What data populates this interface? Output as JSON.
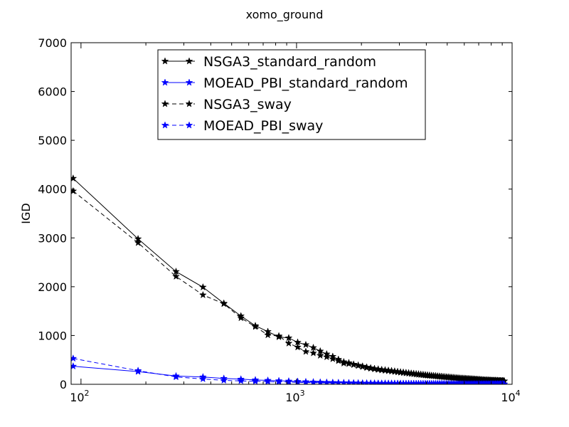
{
  "chart_data": {
    "type": "line",
    "title": "xomo_ground",
    "xlabel": "",
    "ylabel": "IGD",
    "xscale": "log",
    "xlim": [
      90,
      10000
    ],
    "ylim": [
      0,
      7000
    ],
    "x_ticks": [
      {
        "value": 100,
        "base": "10",
        "exp": "2"
      },
      {
        "value": 1000,
        "base": "10",
        "exp": "3"
      },
      {
        "value": 10000,
        "base": "10",
        "exp": "4"
      }
    ],
    "y_ticks": [
      "0",
      "1000",
      "2000",
      "3000",
      "4000",
      "5000",
      "6000",
      "7000"
    ],
    "legend_position": "top-center",
    "grid": false,
    "series": [
      {
        "name": "NSGA3_standard_random",
        "color": "#000000",
        "dash": "solid",
        "x": [
          92,
          184,
          276,
          368,
          460,
          552,
          644,
          736,
          828,
          920,
          1012,
          1104,
          1196,
          1288,
          1380,
          1472,
          1564,
          1656,
          1748,
          1840,
          1932,
          2024,
          2116,
          2208,
          2300,
          2392,
          2484,
          2576,
          2668,
          2760,
          2852,
          2944,
          3036,
          3128,
          3220,
          3312,
          3404,
          3496,
          3588,
          3680,
          3772,
          3864,
          3956,
          4048,
          4140,
          4232,
          4324,
          4416,
          4508,
          4600,
          4692,
          4784,
          4876,
          4968,
          5060,
          5152,
          5244,
          5336,
          5428,
          5520,
          5612,
          5704,
          5796,
          5888,
          5980,
          6072,
          6164,
          6256,
          6348,
          6440,
          6532,
          6624,
          6716,
          6808,
          6900,
          6992,
          7084,
          7176,
          7268,
          7360,
          7452,
          7544,
          7636,
          7728,
          7820,
          7912,
          8004,
          8096,
          8188,
          8280,
          8372,
          8464,
          8556,
          8648,
          8740,
          8832,
          8924,
          9016,
          9108,
          9200
        ],
        "y": [
          4220,
          2980,
          2310,
          1990,
          1660,
          1400,
          1200,
          1080,
          970,
          950,
          860,
          810,
          750,
          680,
          620,
          570,
          510,
          460,
          440,
          410,
          390,
          370,
          350,
          335,
          320,
          310,
          300,
          292,
          284,
          276,
          268,
          260,
          252,
          245,
          238,
          232,
          226,
          220,
          214,
          209,
          204,
          199,
          194,
          189,
          184,
          180,
          176,
          172,
          168,
          164,
          160,
          156,
          153,
          150,
          147,
          144,
          141,
          138,
          135,
          132,
          129,
          126,
          124,
          122,
          120,
          118,
          116,
          114,
          112,
          110,
          108,
          106,
          104,
          102,
          100,
          98,
          96,
          94,
          92,
          90,
          88,
          86,
          85,
          84,
          83,
          82,
          81,
          80,
          79,
          78,
          77,
          76,
          75,
          74,
          73,
          72,
          71,
          70,
          69,
          68
        ]
      },
      {
        "name": "MOEAD_PBI_standard_random",
        "color": "#0000ff",
        "dash": "solid",
        "x": [
          92,
          184,
          276,
          368,
          460,
          552,
          644,
          736,
          828,
          920,
          1012,
          1104,
          1196,
          1288,
          1380,
          1472,
          1564,
          1656,
          1748,
          1840,
          1932,
          2024,
          2116,
          2208,
          2300,
          2392,
          2484,
          2576,
          2668,
          2760,
          2852,
          2944,
          3036,
          3128,
          3220,
          3312,
          3404,
          3496,
          3588,
          3680,
          3772,
          3864,
          3956,
          4048,
          4140,
          4232,
          4324,
          4416,
          4508,
          4600,
          4692,
          4784,
          4876,
          4968,
          5060,
          5152,
          5244,
          5336,
          5428,
          5520,
          5612,
          5704,
          5796,
          5888,
          5980,
          6072,
          6164,
          6256,
          6348,
          6440,
          6532,
          6624,
          6716,
          6808,
          6900,
          6992,
          7084,
          7176,
          7268,
          7360,
          7452,
          7544,
          7636,
          7728,
          7820,
          7912,
          8004,
          8096,
          8188,
          8280,
          8372,
          8464,
          8556,
          8648,
          8740,
          8832,
          8924,
          9016,
          9108,
          9200
        ],
        "y": [
          370,
          260,
          170,
          150,
          120,
          105,
          90,
          80,
          72,
          65,
          58,
          52,
          47,
          43,
          40,
          37,
          34,
          32,
          30,
          28,
          26,
          25,
          24,
          23,
          22,
          21,
          20,
          20,
          19,
          19,
          18,
          18,
          17,
          17,
          16,
          16,
          15,
          15,
          15,
          14,
          14,
          14,
          13,
          13,
          13,
          12,
          12,
          12,
          12,
          11,
          11,
          11,
          11,
          10,
          10,
          10,
          10,
          10,
          9,
          9,
          9,
          9,
          9,
          9,
          8,
          8,
          8,
          8,
          8,
          8,
          8,
          7,
          7,
          7,
          7,
          7,
          7,
          7,
          7,
          6,
          6,
          6,
          6,
          6,
          6,
          6,
          6,
          6,
          5,
          5,
          5,
          5,
          5,
          5,
          5,
          5,
          5,
          5,
          5,
          5
        ]
      },
      {
        "name": "NSGA3_sway",
        "color": "#000000",
        "dash": "dashed",
        "x": [
          92,
          184,
          276,
          368,
          460,
          552,
          644,
          736,
          828,
          920,
          1012,
          1104,
          1196,
          1288,
          1380,
          1472,
          1564,
          1656,
          1748,
          1840,
          1932,
          2024,
          2116,
          2208,
          2300,
          2392,
          2484,
          2576,
          2668,
          2760,
          2852,
          2944,
          3036,
          3128,
          3220,
          3312,
          3404,
          3496,
          3588,
          3680,
          3772,
          3864,
          3956,
          4048,
          4140,
          4232,
          4324,
          4416,
          4508,
          4600,
          4692,
          4784,
          4876,
          4968,
          5060,
          5152,
          5244,
          5336,
          5428,
          5520,
          5612,
          5704,
          5796,
          5888,
          5980,
          6072,
          6164,
          6256,
          6348,
          6440,
          6532,
          6624,
          6716,
          6808,
          6900,
          6992,
          7084,
          7176,
          7268,
          7360,
          7452,
          7544,
          7636,
          7728,
          7820,
          7912,
          8004,
          8096,
          8188,
          8280,
          8372,
          8464,
          8556,
          8648,
          8740,
          8832,
          8924,
          9016,
          9108,
          9200
        ],
        "y": [
          3960,
          2900,
          2210,
          1830,
          1650,
          1360,
          1180,
          1010,
          990,
          840,
          760,
          670,
          640,
          590,
          560,
          520,
          480,
          430,
          420,
          400,
          380,
          360,
          340,
          325,
          312,
          300,
          290,
          282,
          274,
          266,
          258,
          250,
          243,
          236,
          230,
          224,
          218,
          212,
          206,
          201,
          196,
          191,
          186,
          182,
          178,
          174,
          170,
          166,
          162,
          158,
          154,
          151,
          148,
          145,
          142,
          139,
          136,
          133,
          130,
          127,
          124,
          122,
          120,
          118,
          116,
          114,
          112,
          110,
          108,
          106,
          104,
          102,
          100,
          98,
          96,
          94,
          92,
          90,
          88,
          87,
          86,
          85,
          84,
          83,
          82,
          81,
          80,
          79,
          78,
          77,
          76,
          75,
          74,
          73,
          72,
          71,
          70,
          69,
          68,
          67
        ]
      },
      {
        "name": "MOEAD_PBI_sway",
        "color": "#0000ff",
        "dash": "dashed",
        "x": [
          92,
          184,
          276,
          368,
          460,
          552,
          644,
          736,
          828,
          920,
          1012,
          1104,
          1196,
          1288,
          1380,
          1472,
          1564,
          1656,
          1748,
          1840,
          1932,
          2024,
          2116,
          2208,
          2300,
          2392,
          2484,
          2576,
          2668,
          2760,
          2852,
          2944,
          3036,
          3128,
          3220,
          3312,
          3404,
          3496,
          3588,
          3680,
          3772,
          3864,
          3956,
          4048,
          4140,
          4232,
          4324,
          4416,
          4508,
          4600,
          4692,
          4784,
          4876,
          4968,
          5060,
          5152,
          5244,
          5336,
          5428,
          5520,
          5612,
          5704,
          5796,
          5888,
          5980,
          6072,
          6164,
          6256,
          6348,
          6440,
          6532,
          6624,
          6716,
          6808,
          6900,
          6992,
          7084,
          7176,
          7268,
          7360,
          7452,
          7544,
          7636,
          7728,
          7820,
          7912,
          8004,
          8096,
          8188,
          8280,
          8372,
          8464,
          8556,
          8648,
          8740,
          8832,
          8924,
          9016,
          9108,
          9200
        ],
        "y": [
          530,
          280,
          150,
          110,
          80,
          70,
          60,
          55,
          50,
          45,
          40,
          36,
          33,
          31,
          29,
          27,
          25,
          24,
          23,
          22,
          21,
          20,
          19,
          19,
          18,
          18,
          17,
          17,
          16,
          16,
          15,
          15,
          15,
          14,
          14,
          14,
          13,
          13,
          13,
          12,
          12,
          12,
          12,
          11,
          11,
          11,
          11,
          10,
          10,
          10,
          10,
          10,
          9,
          9,
          9,
          9,
          9,
          9,
          8,
          8,
          8,
          8,
          8,
          8,
          8,
          7,
          7,
          7,
          7,
          7,
          7,
          7,
          7,
          6,
          6,
          6,
          6,
          6,
          6,
          6,
          6,
          6,
          5,
          5,
          5,
          5,
          5,
          5,
          5,
          5,
          5,
          5,
          5,
          5,
          5,
          5,
          4,
          4,
          4,
          4
        ]
      }
    ]
  }
}
